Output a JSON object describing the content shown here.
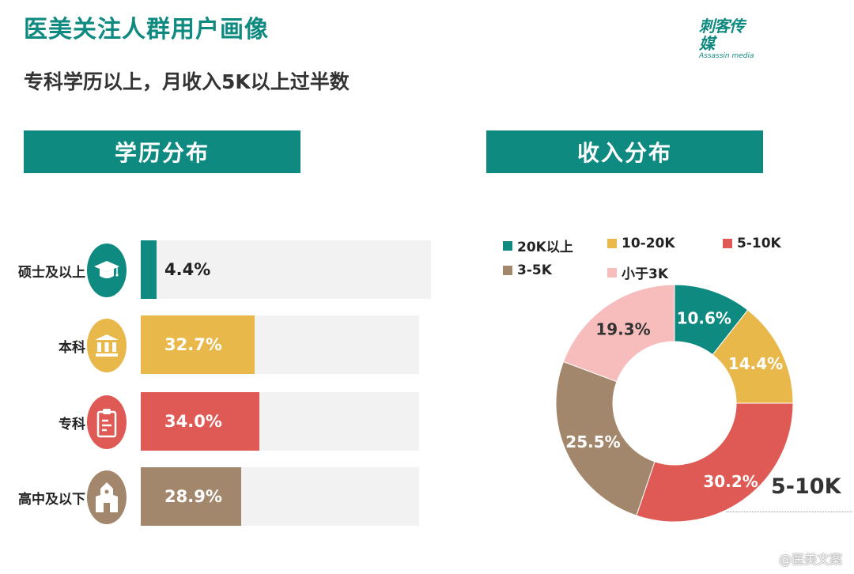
{
  "header": {
    "title": "医美关注人群用户画像",
    "subtitle": "专科学历以上，月收入5K以上过半数",
    "logo_cn": "刺客传媒",
    "logo_en": "Assassin media"
  },
  "education": {
    "heading": "学历分布",
    "rows": [
      {
        "label": "硕士及以上",
        "value": 4.4,
        "text": "4.4%",
        "color": "#0f8a80",
        "icon": "graduation-cap-icon",
        "text_color": "#222222"
      },
      {
        "label": "本科",
        "value": 32.7,
        "text": "32.7%",
        "color": "#e8b84b",
        "icon": "university-building-icon",
        "text_color": "#ffffff"
      },
      {
        "label": "专科",
        "value": 34.0,
        "text": "34.0%",
        "color": "#e05a55",
        "icon": "clipboard-icon",
        "text_color": "#ffffff"
      },
      {
        "label": "高中及以下",
        "value": 28.9,
        "text": "28.9%",
        "color": "#a3876d",
        "icon": "school-house-icon",
        "text_color": "#ffffff"
      }
    ]
  },
  "income": {
    "heading": "收入分布",
    "legend": [
      {
        "label": "20K以上",
        "color": "#0f8a80"
      },
      {
        "label": "10-20K",
        "color": "#e8b84b"
      },
      {
        "label": "5-10K",
        "color": "#e05a55"
      },
      {
        "label": "3-5K",
        "color": "#a3876d"
      },
      {
        "label": "小于3K",
        "color": "#f7bcbc"
      }
    ],
    "callout": "5-10K"
  },
  "chart_data": [
    {
      "type": "bar",
      "title": "学历分布",
      "orientation": "horizontal",
      "categories": [
        "硕士及以上",
        "本科",
        "专科",
        "高中及以下"
      ],
      "values": [
        4.4,
        32.7,
        34.0,
        28.9
      ],
      "unit": "%",
      "colors": [
        "#0f8a80",
        "#e8b84b",
        "#e05a55",
        "#a3876d"
      ]
    },
    {
      "type": "pie",
      "subtype": "donut",
      "title": "收入分布",
      "categories": [
        "20K以上",
        "10-20K",
        "5-10K",
        "3-5K",
        "小于3K"
      ],
      "values": [
        10.6,
        14.4,
        30.2,
        25.5,
        19.3
      ],
      "labels": [
        "10.6%",
        "14.4%",
        "30.2%",
        "25.5%",
        "19.3%"
      ],
      "unit": "%",
      "colors": [
        "#0f8a80",
        "#e8b84b",
        "#e05a55",
        "#a3876d",
        "#f7bcbc"
      ],
      "label_colors": [
        "#ffffff",
        "#ffffff",
        "#ffffff",
        "#ffffff",
        "#333333"
      ],
      "legend_position": "top",
      "annotation": "5-10K"
    }
  ],
  "watermark": "@医美文案"
}
